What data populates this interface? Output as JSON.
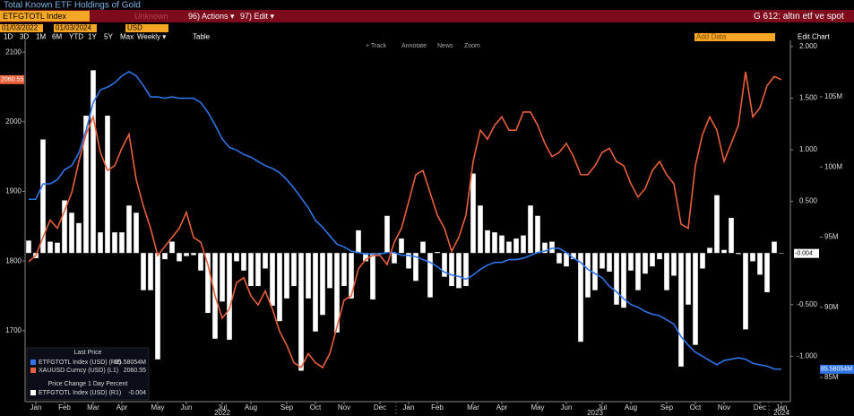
{
  "header": {
    "title": "Total Known ETF Holdings of Gold"
  },
  "toolbar": {
    "ticker": "ETFGTOTL Index",
    "security_hint": "Unknown",
    "menu": [
      "96) Actions ▾",
      "97) Edit ▾"
    ],
    "page": "G 612: altın etf ve spot",
    "start": "01/03/2022",
    "end": "01/03/2024",
    "currency": "USD",
    "add_data": "Add Data",
    "edit_chart": "Edit Chart",
    "ranges": [
      "1D",
      "3D",
      "1M",
      "6M",
      "YTD",
      "1Y",
      "5Y",
      "Max"
    ],
    "frequency": "Weekly ▾",
    "table": "Table",
    "tools": [
      "+ Track",
      "Annotate",
      "News",
      "Zoom"
    ]
  },
  "chart_data": {
    "type": "combo",
    "categories": [
      null,
      "Jan",
      null,
      null,
      null,
      "Feb",
      null,
      null,
      null,
      "Mar",
      null,
      null,
      null,
      "Apr",
      null,
      null,
      null,
      null,
      "May",
      null,
      null,
      null,
      "Jun",
      null,
      null,
      null,
      null,
      "Jul",
      null,
      null,
      null,
      "Aug",
      null,
      null,
      null,
      null,
      "Sep",
      null,
      null,
      null,
      "Oct",
      null,
      null,
      null,
      "Nov",
      null,
      null,
      null,
      null,
      "Dec",
      null,
      null,
      null,
      "Jan",
      null,
      null,
      null,
      "Feb",
      null,
      null,
      null,
      null,
      "Mar",
      null,
      null,
      null,
      "Apr",
      null,
      null,
      null,
      null,
      "May",
      null,
      null,
      null,
      "Jun",
      null,
      null,
      null,
      null,
      "Jul",
      null,
      null,
      null,
      "Aug",
      null,
      null,
      null,
      null,
      "Sep",
      null,
      null,
      null,
      "Oct",
      null,
      null,
      null,
      "Nov",
      null,
      null,
      null,
      null,
      "Dec",
      null,
      null,
      "Jan"
    ],
    "years": [
      "2022",
      "2023",
      "2024"
    ],
    "ylim": [
      1598,
      2117
    ],
    "yticks": [
      1700,
      1800,
      1900,
      2000,
      2100
    ],
    "y2lim": [
      -1.44,
      2.06
    ],
    "y2ticks": [
      {
        "value": 2,
        "label": "2.000"
      },
      {
        "value": 1.5,
        "label": "1.500"
      },
      {
        "value": 1,
        "label": "1.000"
      },
      {
        "value": 0.5,
        "label": "0.500"
      },
      {
        "value": -0.5,
        "label": "-0.500"
      },
      {
        "value": -1,
        "label": "-1.000"
      }
    ],
    "y3lim": [
      83270000,
      109030000
    ],
    "y3ticks": [
      {
        "value": 105000000,
        "label": "105M"
      },
      {
        "value": 100000000,
        "label": "100M"
      },
      {
        "value": 95000000,
        "label": "95M"
      },
      {
        "value": 90000000,
        "label": "90M"
      },
      {
        "value": 85000000,
        "label": "85M"
      }
    ],
    "legend": {
      "corner": "bottom-left",
      "heading": "Last Price",
      "subheading": "Price Change 1 Day Percent"
    },
    "series": [
      {
        "name": "ETFGTOTL Index (USD)  (R2)",
        "last_label": "85.58054M",
        "type": "line",
        "axis": "y3",
        "color": "#2f74e8",
        "values": [
          97700000,
          97700000,
          98800000,
          98800000,
          99100000,
          99800000,
          100100000,
          101000000,
          102600000,
          104600000,
          105500000,
          105700000,
          106000000,
          106500000,
          106800000,
          106500000,
          105800000,
          105000000,
          105000000,
          104900000,
          105000000,
          104900000,
          104900000,
          104900000,
          104600000,
          103900000,
          103000000,
          102000000,
          101400000,
          101200000,
          100900000,
          100700000,
          100400000,
          100100000,
          99900000,
          99600000,
          99100000,
          98500000,
          97800000,
          97100000,
          96200000,
          95700000,
          95100000,
          94500000,
          94300000,
          94000000,
          93900000,
          93800000,
          93800000,
          93800000,
          93900000,
          93900000,
          93700000,
          93700000,
          93600000,
          93400000,
          93200000,
          92900000,
          92500000,
          92300000,
          92200000,
          92000000,
          92300000,
          92700000,
          93000000,
          93200000,
          93200000,
          93400000,
          93400000,
          93500000,
          93700000,
          93900000,
          94000000,
          94200000,
          94200000,
          93900000,
          93500000,
          93200000,
          92700000,
          92400000,
          92100000,
          91500000,
          91100000,
          90600000,
          90200000,
          90000000,
          89700000,
          89500000,
          89400000,
          89100000,
          88800000,
          87900000,
          87300000,
          86800000,
          86500000,
          86200000,
          85900000,
          86200000,
          86300000,
          86400000,
          86300000,
          86000000,
          85900000,
          85800000,
          85600000,
          85580540
        ]
      },
      {
        "name": "XAUUSD Curncy (USD)  (L1)",
        "last_label": "2060.55",
        "type": "line",
        "axis": "y",
        "color": "#e8603c",
        "values": [
          1799,
          1808,
          1834,
          1859,
          1847,
          1872,
          1898,
          1943,
          1982,
          2007,
          1956,
          1930,
          1937,
          1962,
          1982,
          1917,
          1879,
          1847,
          1808,
          1821,
          1834,
          1847,
          1870,
          1834,
          1827,
          1795,
          1750,
          1718,
          1731,
          1769,
          1776,
          1750,
          1737,
          1757,
          1731,
          1699,
          1679,
          1654,
          1647,
          1667,
          1654,
          1647,
          1667,
          1705,
          1744,
          1750,
          1789,
          1802,
          1808,
          1808,
          1795,
          1827,
          1847,
          1885,
          1924,
          1930,
          1898,
          1866,
          1847,
          1814,
          1834,
          1866,
          1943,
          1988,
          1975,
          1995,
          2007,
          1988,
          1988,
          2014,
          2014,
          1995,
          1969,
          1950,
          1956,
          1969,
          1950,
          1924,
          1924,
          1937,
          1956,
          1962,
          1943,
          1937,
          1911,
          1892,
          1904,
          1930,
          1943,
          1924,
          1911,
          1853,
          1847,
          1937,
          1982,
          2007,
          1988,
          1943,
          1969,
          1995,
          2072,
          2007,
          2020,
          2052,
          2065,
          2060.55
        ]
      },
      {
        "name": "ETFGTOTL Index (USD)  (R1)",
        "last_label": "-0.004",
        "type": "bar",
        "axis": "y2",
        "color": "#ffffff",
        "values": [
          0.12,
          -0.05,
          1.1,
          0.11,
          0.1,
          0.51,
          0.39,
          0.29,
          1.33,
          1.77,
          0.2,
          1.33,
          0.2,
          0.2,
          0.46,
          0.39,
          -0.36,
          -0.36,
          -1.03,
          -0.06,
          0.11,
          -0.08,
          -0.03,
          -0.02,
          -0.17,
          -0.58,
          -0.83,
          -0.47,
          -0.84,
          -0.08,
          -0.17,
          -0.32,
          -0.32,
          -0.15,
          -0.51,
          -0.66,
          -0.44,
          -0.32,
          -1.14,
          -0.44,
          -0.76,
          -0.6,
          -0.34,
          -0.77,
          -0.32,
          -0.44,
          0.22,
          -0.08,
          -0.45,
          -0.01,
          0.36,
          -0.1,
          0.14,
          -0.15,
          -0.27,
          0.11,
          -0.43,
          0.01,
          -0.23,
          -0.32,
          -0.34,
          -0.32,
          0.77,
          0.46,
          0.22,
          0.2,
          0.17,
          0.11,
          0.14,
          0.17,
          0.46,
          0.36,
          0.1,
          0.11,
          -0.1,
          -0.13,
          -0.06,
          -0.86,
          -0.43,
          -0.36,
          -0.15,
          -0.18,
          -0.5,
          -0.53,
          -0.17,
          -0.36,
          -0.2,
          -0.13,
          -0.06,
          -0.36,
          -0.22,
          -1.1,
          -0.5,
          -0.89,
          -0.15,
          0.05,
          0.56,
          0.03,
          0.34,
          -0.01,
          -0.74,
          -0.08,
          -0.21,
          -0.38,
          0.11,
          -0.004
        ]
      }
    ]
  }
}
